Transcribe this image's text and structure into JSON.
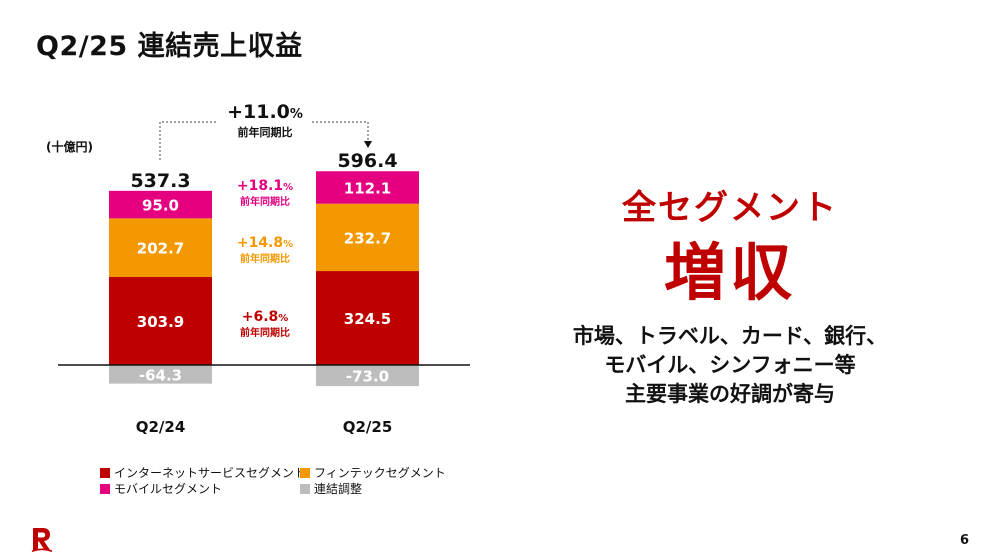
{
  "title": "Q2/25 連結売上収益",
  "unit": "(十億円)",
  "headline": {
    "line1": "全セグメント",
    "line2": "増収"
  },
  "body_lines": [
    "市場、トラベル、カード、銀行、",
    "モバイル、シンフォニー等",
    "主要事業の好調が寄与"
  ],
  "page_number": "6",
  "colors": {
    "internet": "#bf0000",
    "fintech": "#f39800",
    "mobile": "#e4007f",
    "adjustment": "#bdbdbd",
    "accent": "#bf0000"
  },
  "chart_data": {
    "type": "bar",
    "stacked": true,
    "categories": [
      "Q2/24",
      "Q2/25"
    ],
    "totals": [
      "537.3",
      "596.4"
    ],
    "series": [
      {
        "key": "internet",
        "name": "インターネットサービスセグメント",
        "values": [
          303.9,
          324.5
        ],
        "labels": [
          "303.9",
          "324.5"
        ],
        "growth": "+6.8",
        "growth_color": "#bf0000"
      },
      {
        "key": "fintech",
        "name": "フィンテックセグメント",
        "values": [
          202.7,
          232.7
        ],
        "labels": [
          "202.7",
          "232.7"
        ],
        "growth": "+14.8",
        "growth_color": "#f39800"
      },
      {
        "key": "mobile",
        "name": "モバイルセグメント",
        "values": [
          95.0,
          112.1
        ],
        "labels": [
          "95.0",
          "112.1"
        ],
        "growth": "+18.1",
        "growth_color": "#e4007f"
      },
      {
        "key": "adjustment",
        "name": "連結調整",
        "values": [
          -64.3,
          -73.0
        ],
        "labels": [
          "-64.3",
          "-73.0"
        ]
      }
    ],
    "total_growth": "+11.0",
    "percent_sign": "%",
    "growth_caption": "前年同期比",
    "legend_placement": "bottom",
    "grid": false
  }
}
